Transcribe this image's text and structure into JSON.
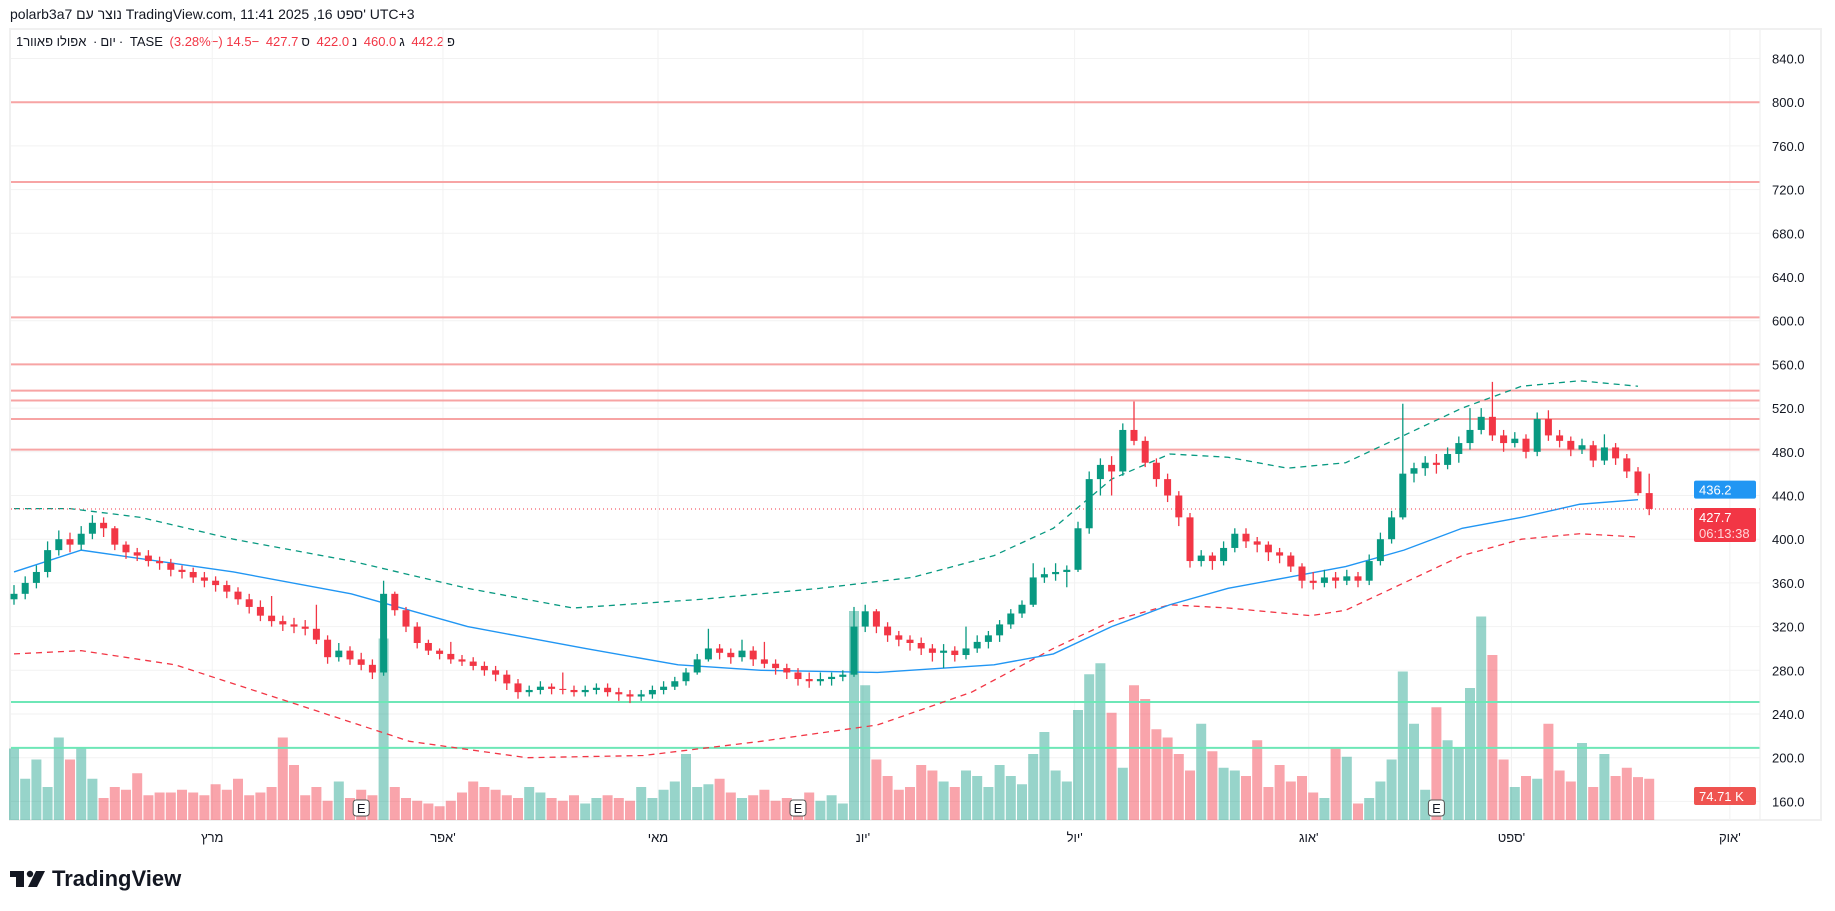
{
  "header": {
    "text": "polarb3a7 נוצר עם TradingView.com, 11:41 2025 ,16 ספט' UTC+3"
  },
  "legend": {
    "interval": "1יום",
    "symbol_name": "אפולו פאוור",
    "exchange": "TASE",
    "open_label": "פ",
    "open": "442.2",
    "high_label": "ג",
    "high": "460.0",
    "low_label": "נ",
    "low": "422.0",
    "close_label": "ס",
    "close": "427.7",
    "change": "−14.5 (−3.28%)"
  },
  "price_axis": {
    "labels": [
      "840.0",
      "800.0",
      "760.0",
      "720.0",
      "680.0",
      "640.0",
      "600.0",
      "560.0",
      "520.0",
      "480.0",
      "440.0",
      "400.0",
      "360.0",
      "320.0",
      "280.0",
      "240.0",
      "200.0",
      "160.0"
    ],
    "ma_badge": "436.2",
    "price_badge": "427.7",
    "countdown": "06:13:38",
    "volume_badge": "74.71 K"
  },
  "time_axis": {
    "labels": [
      {
        "text": "מרץ",
        "bar": 17.7
      },
      {
        "text": "אפר'",
        "bar": 38.3
      },
      {
        "text": "מאי",
        "bar": 57.5
      },
      {
        "text": "יונ'",
        "bar": 75.8
      },
      {
        "text": "יול'",
        "bar": 94.7
      },
      {
        "text": "אוג'",
        "bar": 115.6
      },
      {
        "text": "ספט'",
        "bar": 133.7
      },
      {
        "text": "אוק'",
        "bar": 153.2
      }
    ]
  },
  "earnings_markers": {
    "label": "E",
    "bars": [
      31,
      70,
      127
    ]
  },
  "colors": {
    "up": "#089981",
    "down": "#f23645",
    "ma": "#2196f3",
    "upper_band": "#089981",
    "lower_band": "#f23645",
    "resistance": "#f7a4a4",
    "support": "#6ee7b7"
  },
  "chart_data": {
    "type": "candlestick",
    "price_range": [
      160,
      840
    ],
    "current_price": 427.7,
    "first_open": 345,
    "close": [
      350,
      360,
      370,
      390,
      400,
      395,
      405,
      415,
      410,
      395,
      388,
      385,
      380,
      378,
      372,
      370,
      365,
      362,
      358,
      352,
      345,
      338,
      330,
      325,
      322,
      320,
      318,
      308,
      292,
      298,
      290,
      285,
      278,
      350,
      335,
      320,
      305,
      298,
      295,
      290,
      288,
      284,
      280,
      276,
      268,
      260,
      262,
      265,
      263,
      262,
      260,
      262,
      264,
      260,
      258,
      256,
      258,
      262,
      265,
      270,
      278,
      290,
      300,
      296,
      292,
      298,
      290,
      286,
      282,
      278,
      272,
      270,
      272,
      274,
      276,
      320,
      334,
      320,
      312,
      308,
      305,
      300,
      296,
      298,
      294,
      300,
      306,
      312,
      322,
      332,
      340,
      365,
      368,
      370,
      372,
      410,
      455,
      468,
      462,
      500,
      490,
      470,
      455,
      440,
      420,
      380,
      385,
      380,
      392,
      405,
      398,
      395,
      388,
      385,
      375,
      362,
      360,
      365,
      362,
      366,
      362,
      380,
      400,
      420,
      460,
      465,
      470,
      468,
      478,
      488,
      500,
      512,
      495,
      488,
      492,
      480,
      510,
      495,
      490,
      482,
      486,
      472,
      484,
      474,
      462,
      442.2,
      427.7
    ],
    "high": [
      358,
      366,
      376,
      398,
      408,
      406,
      412,
      422,
      420,
      412,
      398,
      392,
      390,
      384,
      382,
      376,
      374,
      370,
      366,
      362,
      356,
      350,
      344,
      348,
      330,
      328,
      326,
      340,
      312,
      305,
      302,
      296,
      290,
      362,
      352,
      338,
      324,
      308,
      300,
      306,
      294,
      292,
      288,
      284,
      280,
      272,
      266,
      270,
      268,
      278,
      266,
      266,
      268,
      268,
      264,
      262,
      262,
      266,
      270,
      274,
      282,
      295,
      318,
      304,
      300,
      308,
      302,
      306,
      290,
      286,
      282,
      278,
      278,
      278,
      280,
      338,
      340,
      336,
      324,
      316,
      312,
      310,
      304,
      304,
      302,
      320,
      312,
      316,
      326,
      336,
      344,
      378,
      374,
      378,
      376,
      416,
      462,
      474,
      476,
      506,
      526,
      494,
      474,
      460,
      444,
      424,
      390,
      388,
      398,
      410,
      410,
      402,
      398,
      392,
      388,
      378,
      370,
      372,
      370,
      372,
      370,
      386,
      406,
      426,
      524,
      470,
      476,
      478,
      484,
      494,
      520,
      520,
      544,
      500,
      498,
      496,
      516,
      518,
      500,
      494,
      492,
      490,
      496,
      488,
      478,
      466,
      460
    ],
    "low": [
      340,
      345,
      355,
      365,
      385,
      388,
      390,
      400,
      402,
      390,
      382,
      380,
      375,
      372,
      366,
      364,
      360,
      356,
      352,
      346,
      340,
      332,
      325,
      320,
      316,
      314,
      312,
      304,
      286,
      288,
      285,
      280,
      272,
      275,
      330,
      315,
      300,
      294,
      290,
      286,
      284,
      280,
      275,
      270,
      262,
      254,
      256,
      258,
      258,
      258,
      256,
      256,
      258,
      256,
      252,
      250,
      252,
      254,
      258,
      262,
      266,
      276,
      288,
      290,
      286,
      288,
      284,
      282,
      276,
      272,
      266,
      264,
      266,
      266,
      270,
      274,
      315,
      314,
      306,
      302,
      298,
      294,
      288,
      282,
      288,
      290,
      296,
      300,
      306,
      318,
      328,
      338,
      360,
      362,
      356,
      370,
      405,
      440,
      440,
      458,
      486,
      466,
      448,
      434,
      412,
      374,
      375,
      372,
      376,
      388,
      392,
      388,
      380,
      378,
      370,
      355,
      354,
      356,
      355,
      358,
      356,
      358,
      376,
      396,
      418,
      452,
      458,
      460,
      464,
      470,
      482,
      496,
      490,
      480,
      484,
      474,
      476,
      490,
      484,
      476,
      478,
      466,
      468,
      468,
      456,
      440,
      422
    ],
    "volume": [
      130,
      75,
      110,
      60,
      150,
      110,
      130,
      75,
      40,
      60,
      55,
      85,
      45,
      50,
      50,
      55,
      50,
      45,
      65,
      55,
      75,
      45,
      50,
      60,
      150,
      100,
      45,
      60,
      35,
      70,
      40,
      55,
      45,
      330,
      60,
      40,
      35,
      30,
      25,
      35,
      50,
      70,
      60,
      55,
      45,
      40,
      60,
      50,
      40,
      35,
      45,
      30,
      40,
      45,
      40,
      35,
      60,
      40,
      55,
      70,
      120,
      60,
      65,
      75,
      50,
      40,
      45,
      55,
      35,
      40,
      30,
      50,
      35,
      45,
      30,
      380,
      245,
      110,
      80,
      55,
      60,
      100,
      90,
      70,
      60,
      90,
      80,
      60,
      100,
      80,
      65,
      120,
      160,
      90,
      70,
      200,
      265,
      285,
      195,
      95,
      245,
      220,
      165,
      150,
      120,
      90,
      175,
      125,
      95,
      90,
      80,
      145,
      60,
      100,
      70,
      80,
      50,
      40,
      130,
      115,
      30,
      40,
      70,
      110,
      270,
      175,
      55,
      205,
      145,
      130,
      240,
      370,
      300,
      110,
      60,
      80,
      75,
      175,
      90,
      70,
      140,
      60,
      120,
      80,
      95,
      78,
      75
    ],
    "ma": [
      [
        0,
        370
      ],
      [
        6,
        390
      ],
      [
        19.6,
        370
      ],
      [
        30.1,
        350
      ],
      [
        40.5,
        320
      ],
      [
        51,
        300
      ],
      [
        59.3,
        285
      ],
      [
        66.7,
        280
      ],
      [
        77.1,
        278
      ],
      [
        87.5,
        285
      ],
      [
        92.8,
        295
      ],
      [
        98,
        320
      ],
      [
        103.2,
        340
      ],
      [
        108.4,
        355
      ],
      [
        113.7,
        365
      ],
      [
        118.9,
        375
      ],
      [
        124.1,
        390
      ],
      [
        129.3,
        410
      ],
      [
        134.6,
        420
      ],
      [
        139.8,
        432
      ],
      [
        145,
        436.2
      ]
    ],
    "upper_band": [
      [
        0,
        428
      ],
      [
        5,
        428
      ],
      [
        11.3,
        420
      ],
      [
        19.6,
        400
      ],
      [
        30.1,
        380
      ],
      [
        40.5,
        355
      ],
      [
        49.9,
        337
      ],
      [
        61.4,
        345
      ],
      [
        71.9,
        355
      ],
      [
        80.2,
        365
      ],
      [
        87.5,
        385
      ],
      [
        92.8,
        410
      ],
      [
        98,
        455
      ],
      [
        103.2,
        478
      ],
      [
        108.4,
        475
      ],
      [
        113.7,
        465
      ],
      [
        118.9,
        470
      ],
      [
        124.1,
        495
      ],
      [
        129.3,
        520
      ],
      [
        134.6,
        540
      ],
      [
        139.8,
        545
      ],
      [
        145,
        540
      ]
    ],
    "lower_band": [
      [
        0,
        295
      ],
      [
        6,
        298
      ],
      [
        14.4,
        285
      ],
      [
        24.9,
        250
      ],
      [
        35.3,
        215
      ],
      [
        45.8,
        200
      ],
      [
        56.2,
        202
      ],
      [
        66.7,
        215
      ],
      [
        77.1,
        230
      ],
      [
        85.5,
        260
      ],
      [
        92.8,
        300
      ],
      [
        98,
        325
      ],
      [
        103.2,
        340
      ],
      [
        108.4,
        337
      ],
      [
        115.8,
        330
      ],
      [
        118.9,
        335
      ],
      [
        124.1,
        360
      ],
      [
        129.3,
        385
      ],
      [
        134.6,
        400
      ],
      [
        139.8,
        405
      ],
      [
        145,
        402
      ]
    ],
    "resistance_levels": [
      800,
      727,
      603,
      560,
      536,
      527,
      510,
      482
    ],
    "support_levels": [
      251,
      209
    ]
  },
  "branding": {
    "logo_text": "TradingView"
  }
}
